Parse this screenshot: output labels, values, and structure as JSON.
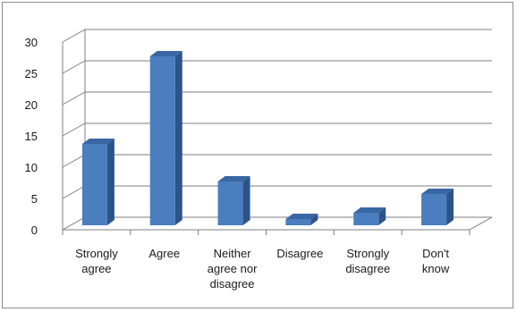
{
  "chart_data": {
    "type": "bar",
    "style": "3d-column",
    "categories": [
      [
        "Strongly",
        "agree"
      ],
      [
        "Agree"
      ],
      [
        "Neither",
        "agree nor",
        "disagree"
      ],
      [
        "Disagree"
      ],
      [
        "Strongly",
        "disagree"
      ],
      [
        "Don't",
        "know"
      ]
    ],
    "values": [
      13,
      27,
      7,
      1,
      2,
      5
    ],
    "ylim": [
      0,
      30
    ],
    "yticks": [
      0,
      5,
      10,
      15,
      20,
      25,
      30
    ],
    "grid": true,
    "legend": "none",
    "colors": {
      "bar_front": "#4a7ebf",
      "bar_side": "#2d5488",
      "bar_top": "#3a67a3",
      "gridline": "#7f7f7f"
    }
  }
}
